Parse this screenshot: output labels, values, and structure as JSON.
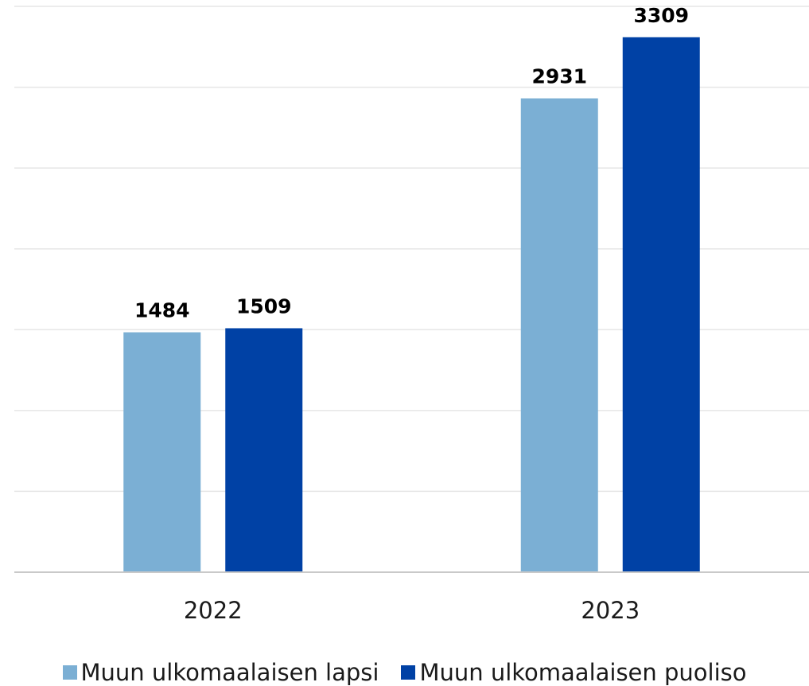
{
  "chart_data": {
    "type": "bar",
    "categories": [
      "2022",
      "2023"
    ],
    "series": [
      {
        "name": "Muun ulkomaalaisen lapsi",
        "values": [
          1484,
          2931
        ],
        "color": "#7bafd4"
      },
      {
        "name": "Muun ulkomaalaisen puoliso",
        "values": [
          1509,
          3309
        ],
        "color": "#0041a5"
      }
    ],
    "ylim": [
      0,
      3500
    ],
    "grid": true,
    "legend_position": "bottom",
    "title": "",
    "xlabel": "",
    "ylabel": ""
  }
}
